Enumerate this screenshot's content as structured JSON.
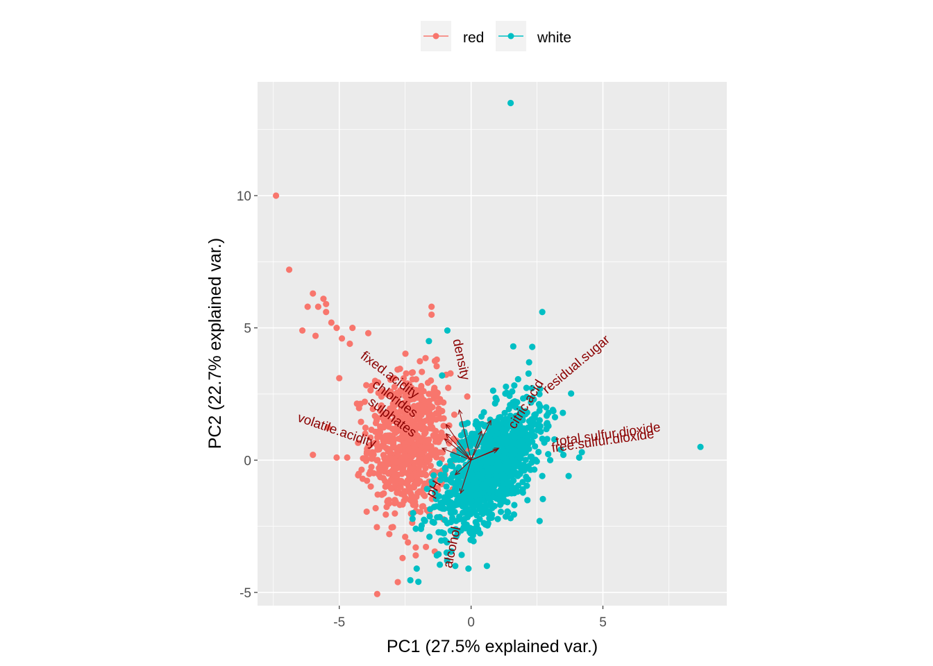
{
  "chart_data": {
    "type": "scatter",
    "title": "",
    "xlabel": "PC1 (27.5% explained var.)",
    "ylabel": "PC2 (22.7% explained var.)",
    "xlim": [
      -8.1,
      9.7
    ],
    "ylim": [
      -5.5,
      14.3
    ],
    "x_ticks": [
      -5,
      0,
      5
    ],
    "y_ticks": [
      -5,
      0,
      5,
      10
    ],
    "grid": true,
    "legend_position": "top",
    "colors": {
      "red": "#F8766D",
      "white": "#00BFC4",
      "loading": "#8B0000",
      "panel": "#EBEBEB",
      "grid": "#FFFFFF"
    },
    "series": [
      {
        "name": "red",
        "color": "#F8766D",
        "outliers": [
          [
            -7.4,
            10.0
          ],
          [
            -6.9,
            7.2
          ],
          [
            -6.0,
            6.3
          ],
          [
            -5.6,
            6.1
          ],
          [
            -5.5,
            5.9
          ],
          [
            -6.2,
            5.8
          ],
          [
            -5.8,
            5.8
          ],
          [
            -5.5,
            5.6
          ],
          [
            -5.3,
            5.2
          ],
          [
            -5.1,
            5.0
          ],
          [
            -6.4,
            4.9
          ],
          [
            -5.9,
            4.7
          ],
          [
            -4.9,
            4.6
          ],
          [
            -4.6,
            4.4
          ],
          [
            -6.0,
            0.2
          ],
          [
            -5.1,
            0.1
          ],
          [
            -4.7,
            0.1
          ],
          [
            -5.0,
            3.1
          ],
          [
            -1.5,
            5.8
          ],
          [
            -1.5,
            5.5
          ],
          [
            -4.5,
            5.0
          ],
          [
            -3.9,
            4.8
          ],
          [
            -1.3,
            3.8
          ],
          [
            -2.5,
            -2.9
          ],
          [
            -2.1,
            -3.3
          ],
          [
            -2.6,
            -3.7
          ],
          [
            -2.1,
            -3.6
          ],
          [
            -0.7,
            -1.1
          ]
        ],
        "cluster": {
          "cx": -2.4,
          "cy": 0.6,
          "sx": 0.75,
          "sy": 1.35,
          "rho": 0.0,
          "n": 700
        }
      },
      {
        "name": "white",
        "color": "#00BFC4",
        "outliers": [
          [
            1.5,
            13.5
          ],
          [
            8.7,
            0.5
          ],
          [
            2.7,
            5.6
          ],
          [
            -1.6,
            4.5
          ],
          [
            -0.9,
            4.9
          ],
          [
            1.6,
            4.3
          ],
          [
            2.2,
            3.7
          ],
          [
            3.1,
            1.9
          ],
          [
            3.4,
            0.4
          ],
          [
            3.7,
            -0.6
          ],
          [
            4.1,
            0.1
          ],
          [
            4.2,
            0.3
          ],
          [
            3.0,
            0.0
          ],
          [
            2.6,
            -2.3
          ],
          [
            -2.0,
            -4.6
          ],
          [
            -1.3,
            -3.6
          ],
          [
            -0.1,
            -4.1
          ],
          [
            0.6,
            -4.0
          ],
          [
            -1.1,
            3.2
          ],
          [
            2.7,
            -0.6
          ],
          [
            3.5,
            0.2
          ],
          [
            -2.2,
            -2.0
          ],
          [
            -1.9,
            -2.6
          ],
          [
            -0.6,
            -4.0
          ]
        ],
        "cluster": {
          "cx": 0.75,
          "cy": -0.2,
          "sx": 0.95,
          "sy": 1.2,
          "rho": 0.6,
          "n": 1100
        }
      }
    ],
    "loadings": [
      {
        "name": "fixed.acidity",
        "x": -0.95,
        "y": 1.35,
        "label_x": -3.1,
        "label_y": 3.2,
        "angle": 37
      },
      {
        "name": "chlorides",
        "x": -0.95,
        "y": 1.0,
        "label_x": -2.9,
        "label_y": 2.3,
        "angle": 37
      },
      {
        "name": "sulphates",
        "x": -1.0,
        "y": 0.8,
        "label_x": -3.0,
        "label_y": 1.6,
        "angle": 37
      },
      {
        "name": "volatile.acidity",
        "x": -1.1,
        "y": 0.45,
        "label_x": -5.1,
        "label_y": 1.1,
        "angle": 19
      },
      {
        "name": "density",
        "x": -0.45,
        "y": 1.9,
        "label_x": -0.4,
        "label_y": 3.8,
        "angle": 78
      },
      {
        "name": "citric.acid",
        "x": 0.4,
        "y": 1.1,
        "label_x": 2.1,
        "label_y": 2.1,
        "angle": -58
      },
      {
        "name": "residual.sugar",
        "x": 0.75,
        "y": 1.5,
        "label_x": 4.0,
        "label_y": 3.6,
        "angle": -40
      },
      {
        "name": "total.sulfur.dioxide",
        "x": 1.05,
        "y": 0.45,
        "label_x": 5.2,
        "label_y": 0.95,
        "angle": -8
      },
      {
        "name": "free.sulfur.dioxide",
        "x": 1.0,
        "y": 0.4,
        "label_x": 5.0,
        "label_y": 0.7,
        "angle": -8
      },
      {
        "name": "pH",
        "x": -0.6,
        "y": -0.55,
        "label_x": -1.4,
        "label_y": -1.1,
        "angle": -60
      },
      {
        "name": "alcohol",
        "x": -0.4,
        "y": -1.25,
        "label_x": -0.7,
        "label_y": -3.3,
        "angle": -78
      }
    ]
  }
}
